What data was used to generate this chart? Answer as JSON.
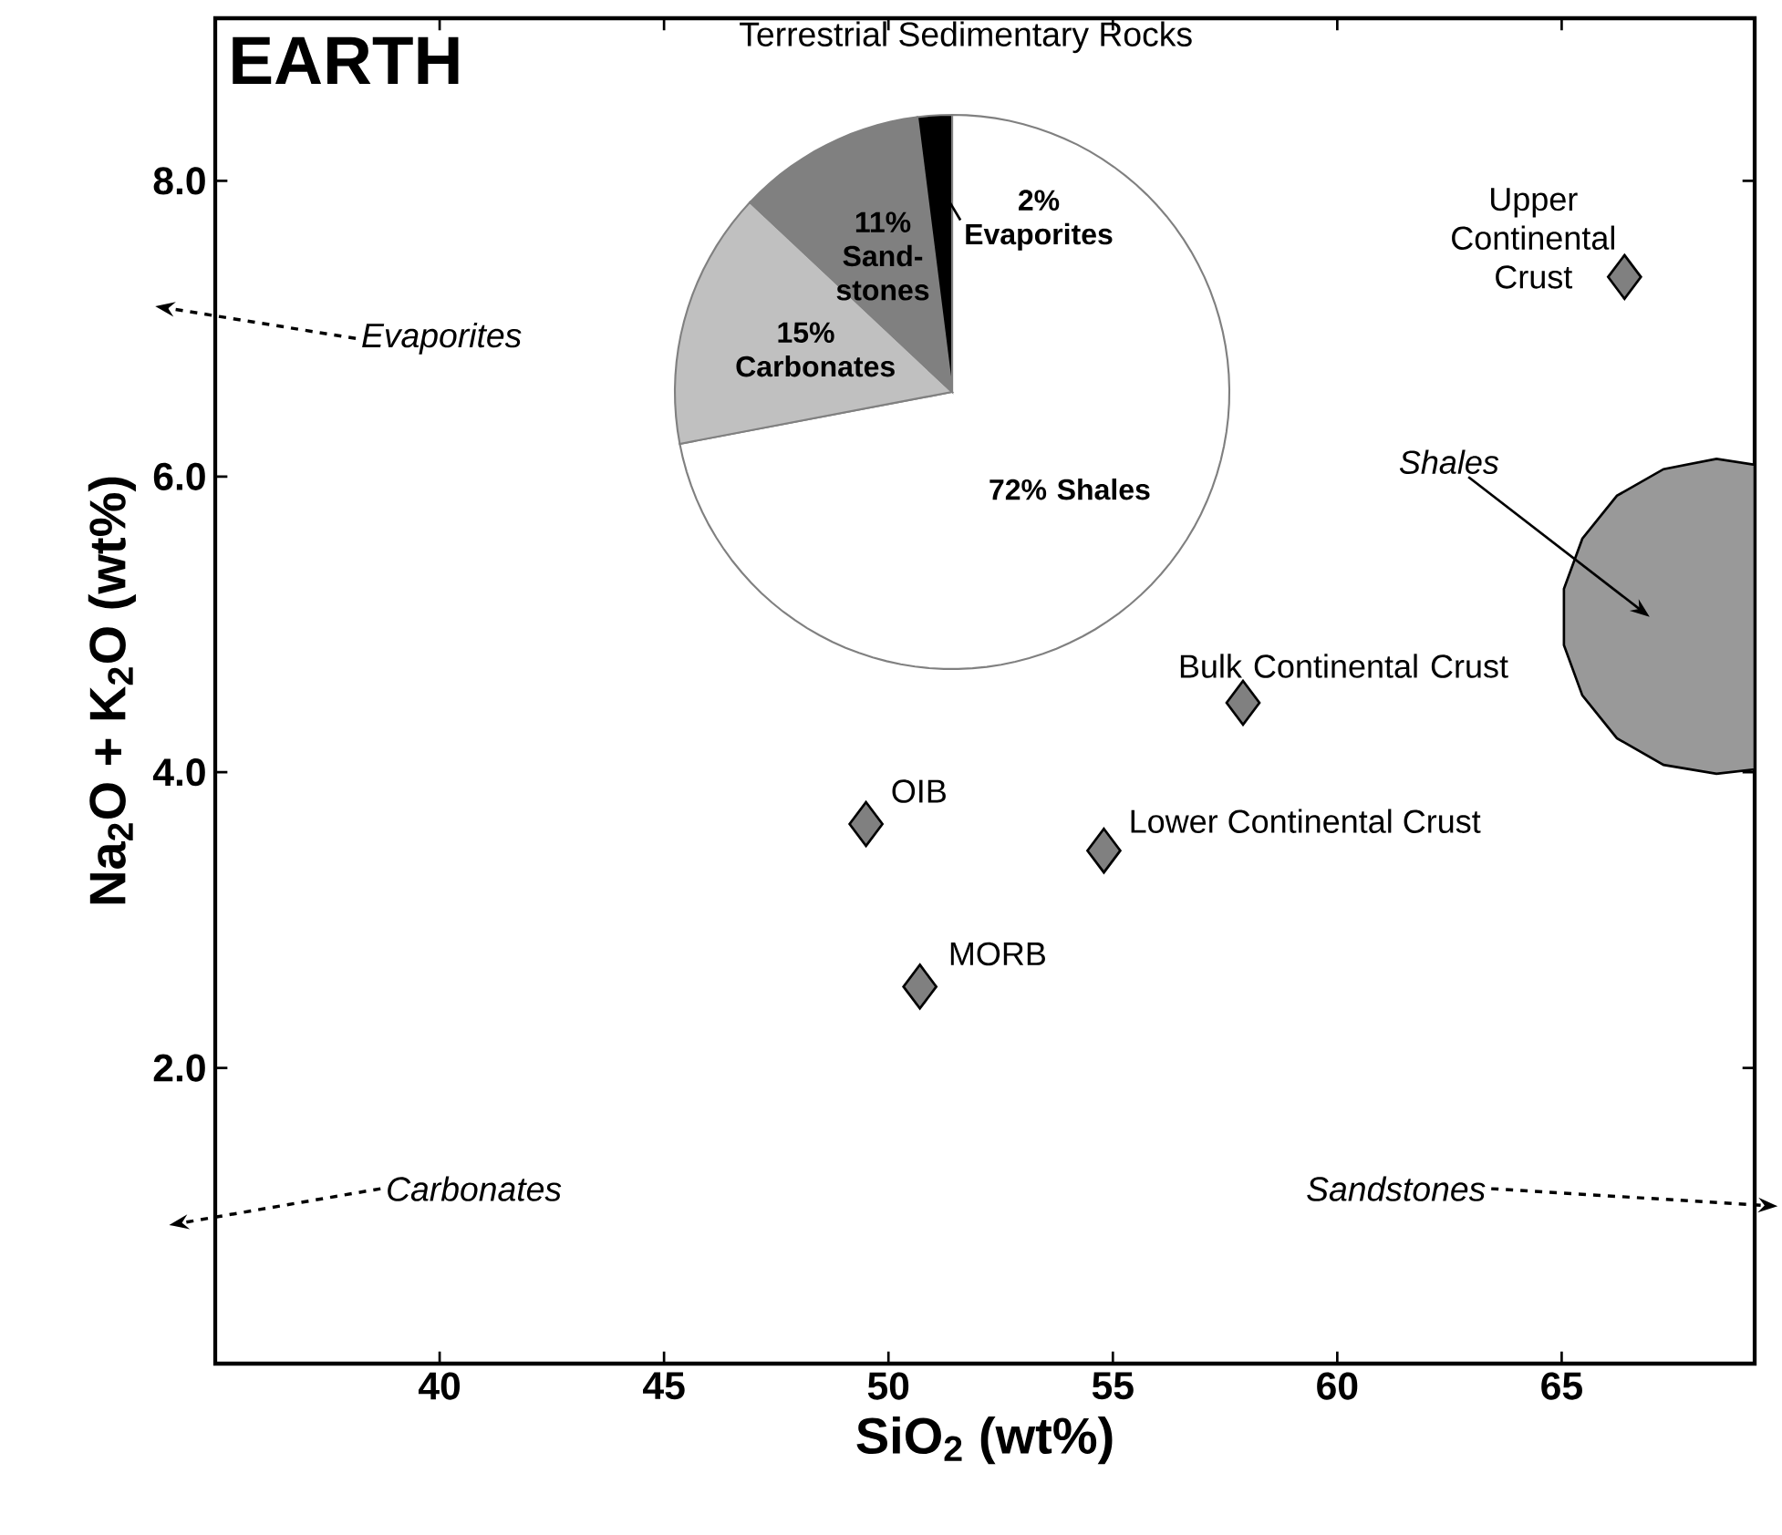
{
  "chart_data": [
    {
      "type": "scatter",
      "title": "EARTH",
      "xlabel": "SiO$_{2}$ (wt%)",
      "ylabel": "Na$_{2}$O + K$_{2}$O (wt%)",
      "xlim": [
        35,
        69.3
      ],
      "ylim": [
        0,
        9.1
      ],
      "xticks": [
        40,
        45,
        50,
        55,
        60,
        65
      ],
      "yticks": [
        {
          "value": 2,
          "label": "2.0"
        },
        {
          "value": 4,
          "label": "4.0"
        },
        {
          "value": 6,
          "label": "6.0"
        },
        {
          "value": 8,
          "label": "8.0"
        }
      ],
      "marker": "diamond",
      "series": [
        {
          "name": "OIB",
          "color": "#808080",
          "x": [
            49.5
          ],
          "values": [
            3.65
          ]
        },
        {
          "name": "MORB",
          "color": "#808080",
          "x": [
            50.7
          ],
          "values": [
            2.55
          ]
        },
        {
          "name": "Lower Continental Crust",
          "color": "#808080",
          "x": [
            54.8
          ],
          "values": [
            3.47
          ]
        },
        {
          "name": "Bulk Continental Crust",
          "color": "#808080",
          "x": [
            57.9
          ],
          "values": [
            4.47
          ]
        },
        {
          "name": "Upper Continental Crust",
          "color": "#808080",
          "x": [
            66.4
          ],
          "values": [
            7.35
          ]
        },
        {
          "name": "Shales",
          "type": "area",
          "marker": "none",
          "color": "#999999",
          "x": [
            69.3,
            68.45,
            67.27,
            66.23,
            65.46,
            65.05,
            65.05,
            65.46,
            66.23,
            67.27,
            68.45,
            69.3
          ],
          "values": [
            6.08,
            6.12,
            6.05,
            5.87,
            5.58,
            5.24,
            4.86,
            4.52,
            4.23,
            4.05,
            3.99,
            4.02
          ]
        }
      ],
      "annotations": [
        "Evaporites",
        "Carbonates",
        "Sandstones"
      ]
    },
    {
      "type": "pie",
      "title": "Terrestrial Sedimentary Rocks",
      "categories": [
        "Shales",
        "Carbonates",
        "Sand-stones",
        "Evaporites"
      ],
      "values": [
        72,
        15,
        11,
        2
      ],
      "colors": [
        "#ffffff",
        "#c0c0c0",
        "#808080",
        "#000000"
      ],
      "value_labels": [
        "72%",
        "15%",
        "11%",
        "2%"
      ]
    }
  ]
}
